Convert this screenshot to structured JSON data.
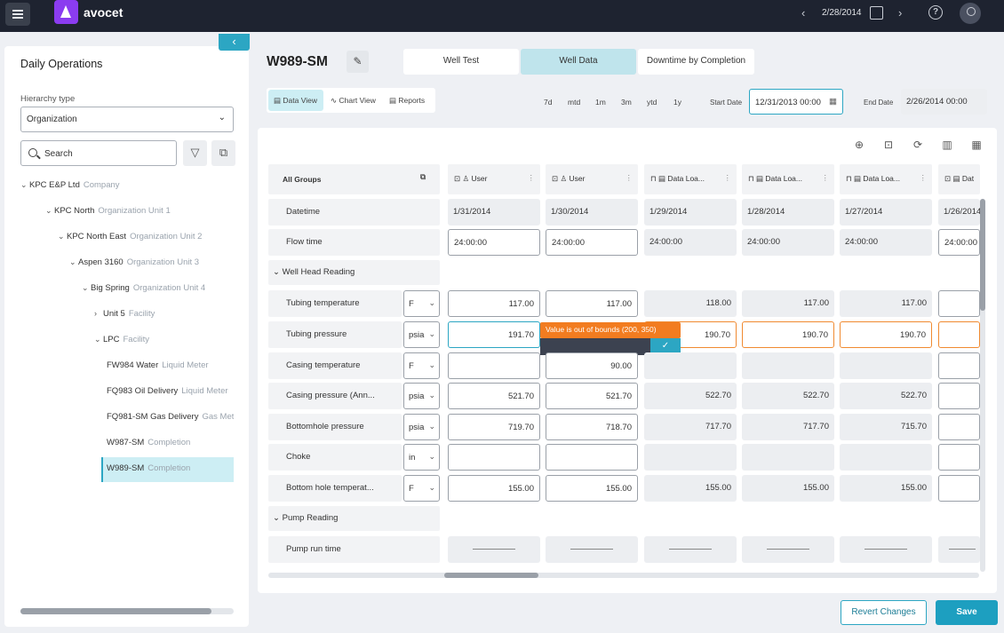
{
  "app": {
    "brand": "avocet",
    "current_date": "2/28/2014"
  },
  "sidebar": {
    "title": "Daily Operations",
    "hierarchy_label": "Hierarchy type",
    "hierarchy_value": "Organization",
    "search_placeholder": "Search",
    "tree": [
      {
        "name": "KPC E&P Ltd",
        "type": "Company",
        "expanded": true
      },
      {
        "name": "KPC North",
        "type": "Organization Unit 1",
        "expanded": true
      },
      {
        "name": "KPC North East",
        "type": "Organization Unit 2",
        "expanded": true
      },
      {
        "name": "Aspen 3160",
        "type": "Organization Unit 3",
        "expanded": true
      },
      {
        "name": "Big Spring",
        "type": "Organization Unit 4",
        "expanded": true
      },
      {
        "name": "Unit 5",
        "type": "Facility",
        "expanded": false
      },
      {
        "name": "LPC",
        "type": "Facility",
        "expanded": true
      },
      {
        "name": "FW984 Water",
        "type": "Liquid Meter"
      },
      {
        "name": "FQ983 Oil Delivery",
        "type": "Liquid Meter"
      },
      {
        "name": "FQ981-SM Gas Delivery",
        "type": "Gas Met"
      },
      {
        "name": "W987-SM",
        "type": "Completion"
      },
      {
        "name": "W989-SM",
        "type": "Completion",
        "selected": true
      }
    ]
  },
  "header": {
    "title": "W989-SM",
    "tabs": [
      "Well Test",
      "Well Data",
      "Downtime by Completion"
    ],
    "active_tab": "Well Data"
  },
  "view_tabs": [
    "Data View",
    "Chart View",
    "Reports"
  ],
  "active_view": "Data View",
  "ranges": [
    "7d",
    "mtd",
    "1m",
    "3m",
    "ytd",
    "1y"
  ],
  "start_date_label": "Start Date",
  "start_date": "12/31/2013 00:00",
  "end_date_label": "End Date",
  "end_date": "2/26/2014 00:00",
  "grid": {
    "group_header": "All Groups",
    "columns": [
      {
        "source": "User",
        "date": "1/31/2014",
        "flow": "24:00:00"
      },
      {
        "source": "User",
        "date": "1/30/2014",
        "flow": "24:00:00"
      },
      {
        "source": "Data Loa...",
        "date": "1/29/2014",
        "flow": "24:00:00"
      },
      {
        "source": "Data Loa...",
        "date": "1/28/2014",
        "flow": "24:00:00"
      },
      {
        "source": "Data Loa...",
        "date": "1/27/2014",
        "flow": "24:00:00"
      },
      {
        "source": "Dat",
        "date": "1/26/2014",
        "flow": "24:00:00"
      }
    ],
    "datetime_label": "Datetime",
    "flow_label": "Flow time",
    "section1": "Well Head Reading",
    "rows": [
      {
        "label": "Tubing temperature",
        "unit": "F",
        "values": [
          "117.00",
          "117.00",
          "118.00",
          "117.00",
          "117.00",
          ""
        ]
      },
      {
        "label": "Tubing pressure",
        "unit": "psia",
        "values": [
          "191.70",
          "",
          "190.70",
          "190.70",
          "190.70",
          ""
        ]
      },
      {
        "label": "Casing temperature",
        "unit": "F",
        "values": [
          "",
          "90.00",
          "",
          "",
          "",
          ""
        ]
      },
      {
        "label": "Casing pressure (Ann...",
        "unit": "psia",
        "values": [
          "521.70",
          "521.70",
          "522.70",
          "522.70",
          "522.70",
          ""
        ]
      },
      {
        "label": "Bottomhole pressure",
        "unit": "psia",
        "values": [
          "719.70",
          "718.70",
          "717.70",
          "717.70",
          "715.70",
          ""
        ]
      },
      {
        "label": "Choke",
        "unit": "in",
        "values": [
          "",
          "",
          "",
          "",
          "",
          ""
        ]
      },
      {
        "label": "Bottom hole temperat...",
        "unit": "F",
        "values": [
          "155.00",
          "155.00",
          "155.00",
          "155.00",
          "155.00",
          ""
        ]
      }
    ],
    "section2": "Pump Reading",
    "pump_row": "Pump run time",
    "validation_message": "Value is out of bounds (200, 350)"
  },
  "actions": {
    "revert": "Revert Changes",
    "save": "Save"
  }
}
